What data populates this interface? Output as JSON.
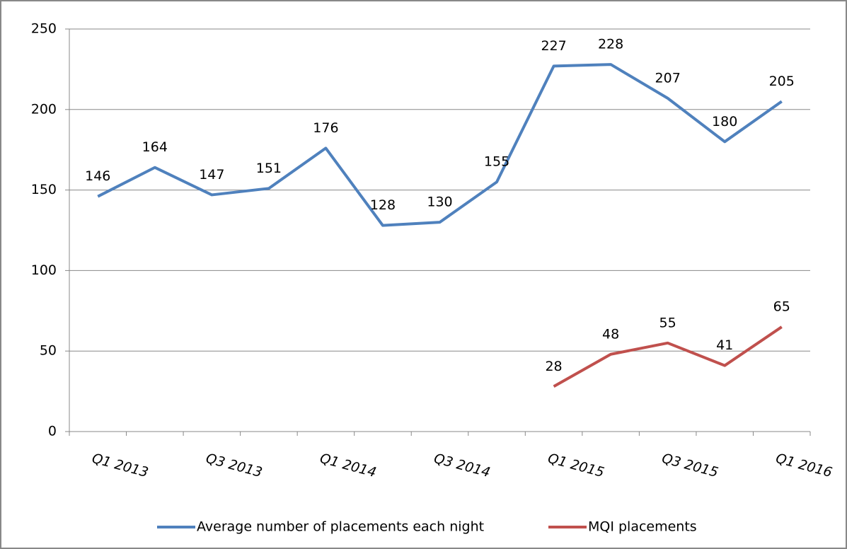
{
  "chart_data": {
    "type": "line",
    "categories": [
      "Q1 2013",
      null,
      "Q3 2013",
      null,
      "Q1 2014",
      null,
      "Q3 2014",
      null,
      "Q1 2015",
      null,
      "Q3 2015",
      null,
      "Q1 2016"
    ],
    "series": [
      {
        "name": "Average number of placements each night",
        "color": "#4f81bd",
        "values": [
          146,
          164,
          147,
          151,
          176,
          128,
          130,
          155,
          227,
          228,
          207,
          180,
          205
        ]
      },
      {
        "name": "MQI placements",
        "color": "#c0504d",
        "values": [
          null,
          null,
          null,
          null,
          null,
          null,
          null,
          null,
          28,
          48,
          55,
          41,
          65
        ]
      }
    ],
    "ylim": [
      0,
      250
    ],
    "yticks": [
      0,
      50,
      100,
      150,
      200,
      250
    ],
    "grid": true,
    "legend": "bottom"
  }
}
